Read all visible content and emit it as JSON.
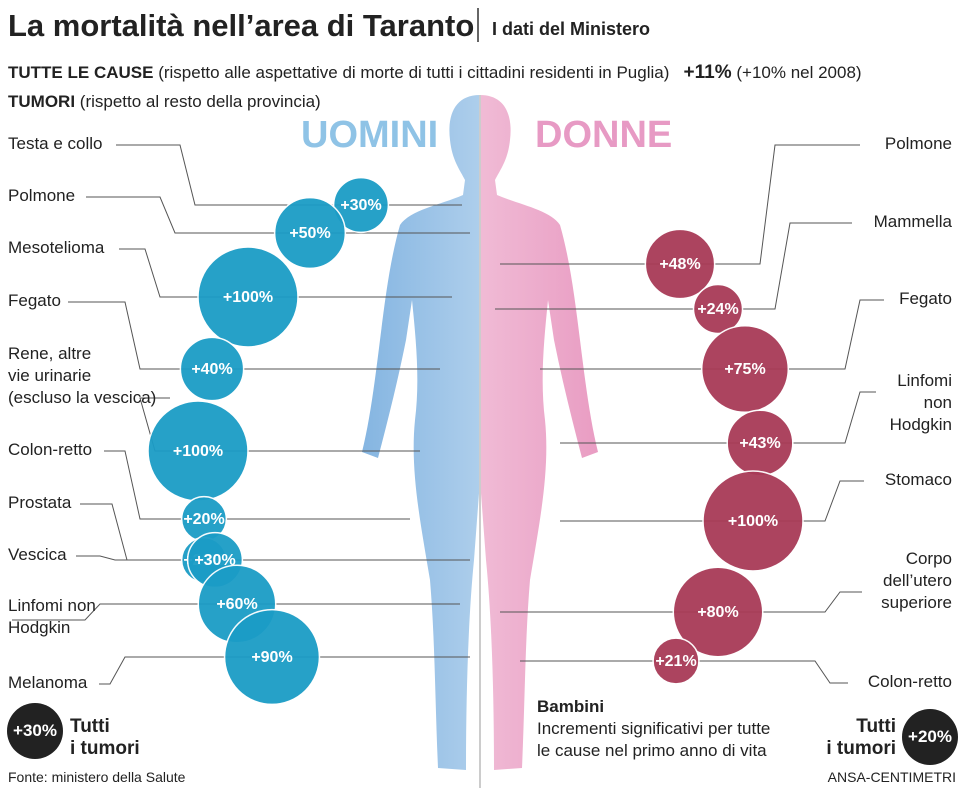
{
  "header": {
    "title": "La mortalità nell’area di Taranto",
    "subtitle": "I dati del Ministero"
  },
  "intro": {
    "all_causes_label": "TUTTE LE CAUSE",
    "all_causes_note": "(rispetto alle aspettative di morte di tutti i cittadini residenti in Puglia)",
    "all_causes_value": "+11%",
    "all_causes_previous": "(+10% nel 2008)",
    "tumors_label": "TUMORI",
    "tumors_note": "(rispetto al resto della provincia)"
  },
  "chart_data": [
    {
      "type": "bubble",
      "title": "UOMINI",
      "color": "#1b9cc6",
      "title_color": "#8fc3e6",
      "categories": [
        "Testa e collo",
        "Polmone",
        "Mesotelioma",
        "Fegato",
        "Rene, altre\nvie urinarie\n(escluso la vescica)",
        "Colon-retto",
        "Prostata",
        "Vescica",
        "Linfomi non\nHodgkin",
        "Melanoma"
      ],
      "values": [
        30,
        50,
        100,
        40,
        100,
        20,
        20,
        30,
        60,
        90
      ],
      "value_labels": [
        "+30%",
        "+50%",
        "+100%",
        "+40%",
        "+100%",
        "+20%",
        "+20%",
        "+30%",
        "+60%",
        "+90%"
      ]
    },
    {
      "type": "bubble",
      "title": "DONNE",
      "color": "#a83a57",
      "title_color": "#e79ac4",
      "categories": [
        "Polmone",
        "Mammella",
        "Fegato",
        "Linfomi\nnon Hodgkin",
        "Stomaco",
        "Corpo\ndell’utero\nsuperiore",
        "Colon-retto"
      ],
      "values": [
        48,
        24,
        75,
        43,
        100,
        80,
        21
      ],
      "value_labels": [
        "+48%",
        "+24%",
        "+75%",
        "+43%",
        "+100%",
        "+80%",
        "+21%"
      ]
    }
  ],
  "totals": {
    "men_value": "+30%",
    "men_caption": "Tutti\ni tumori",
    "women_value": "+20%",
    "women_caption": "Tutti\ni tumori"
  },
  "bambini": {
    "title": "Bambini",
    "text": "Incrementi significativi per tutte\nle cause nel primo anno di vita"
  },
  "footer": {
    "source": "Fonte: ministero della Salute",
    "credit": "ANSA-CENTIMETRI"
  }
}
